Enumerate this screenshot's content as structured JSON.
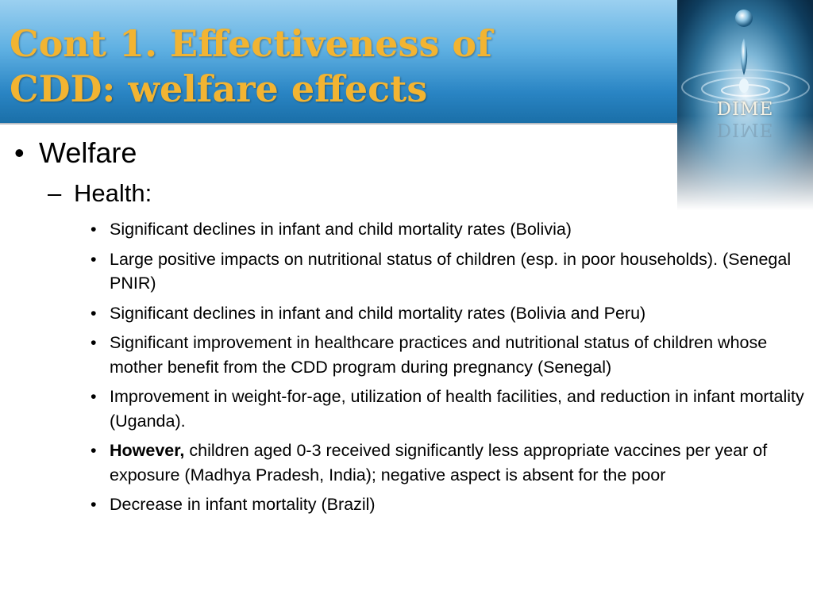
{
  "slide": {
    "title_line1": "Cont 1. Effectiveness of",
    "title_line2": "CDD: welfare effects",
    "logo_text": "DIME"
  },
  "content": {
    "level1": "Welfare",
    "level2": "Health:",
    "items": [
      {
        "bold": "",
        "text": "Significant declines in infant and child mortality rates (Bolivia)"
      },
      {
        "bold": "",
        "text": "Large positive impacts on nutritional status of children (esp. in poor households). (Senegal PNIR)"
      },
      {
        "bold": "",
        "text": "Significant declines in infant and child mortality rates (Bolivia and Peru)"
      },
      {
        "bold": "",
        "text": "Significant improvement in healthcare practices and nutritional status of children whose mother benefit from the CDD program during pregnancy (Senegal)"
      },
      {
        "bold": "",
        "text": "Improvement in weight-for-age, utilization of health facilities, and reduction in infant mortality (Uganda)."
      },
      {
        "bold": "However,",
        "text": " children aged 0-3 received significantly less appropriate vaccines per year of exposure (Madhya Pradesh, India); negative aspect is absent for the poor"
      },
      {
        "bold": "",
        "text": "Decrease in infant mortality (Brazil)"
      }
    ]
  },
  "colors": {
    "title": "#f2b432",
    "header_top": "#9bd0f0",
    "header_bottom": "#1a6fa8"
  }
}
